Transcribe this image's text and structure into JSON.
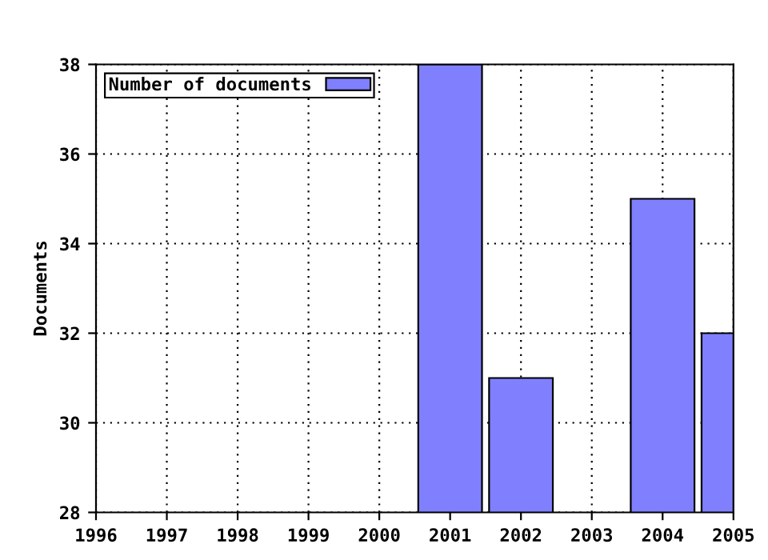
{
  "chart_data": {
    "type": "bar",
    "ylabel": "Documents",
    "x": [
      2001,
      2002,
      2004,
      2005
    ],
    "series": [
      {
        "name": "Number of documents",
        "color": "#8080ff",
        "values": [
          38,
          31,
          35,
          32
        ]
      }
    ],
    "xlim": [
      1996,
      2005
    ],
    "xticks": [
      1996,
      1997,
      1998,
      1999,
      2000,
      2001,
      2002,
      2003,
      2004,
      2005
    ],
    "ylim": [
      28,
      38
    ],
    "yticks": [
      28,
      30,
      32,
      34,
      36,
      38
    ],
    "grid": true,
    "legend": "top left"
  }
}
